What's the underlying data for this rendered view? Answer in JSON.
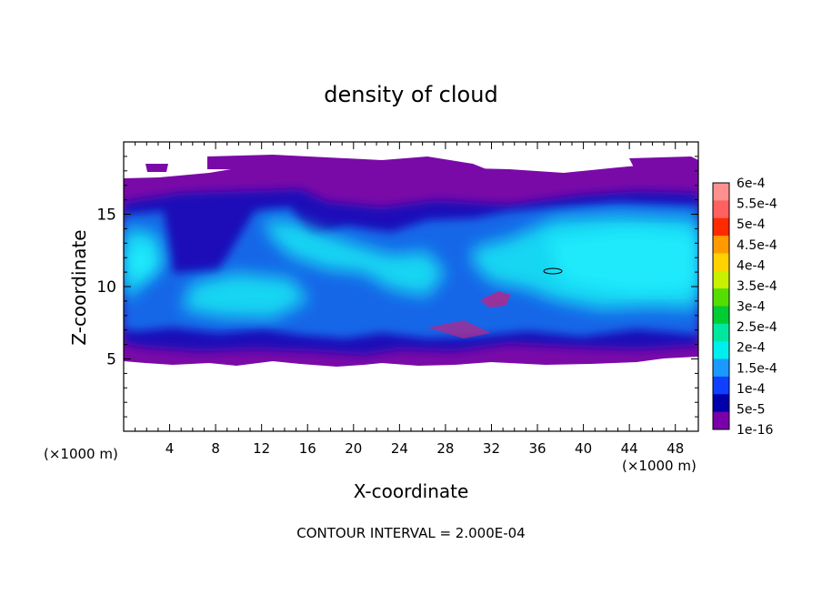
{
  "chart_data": {
    "type": "heatmap",
    "title": "density of cloud",
    "xlabel": "X-coordinate",
    "ylabel": "Z-coordinate",
    "x_unit_note": "(×1000 m)",
    "y_unit_note": "(×1000 m)",
    "xlim": [
      0,
      50
    ],
    "ylim": [
      0,
      20
    ],
    "x_ticks": [
      4,
      8,
      12,
      16,
      20,
      24,
      28,
      32,
      36,
      40,
      44,
      48
    ],
    "y_ticks": [
      5,
      10,
      15
    ],
    "contour_interval_text": "CONTOUR INTERVAL = 2.000E-04",
    "colorbar": {
      "labels": [
        "6e-4",
        "5.5e-4",
        "5e-4",
        "4.5e-4",
        "4e-4",
        "3.5e-4",
        "3e-4",
        "2.5e-4",
        "2e-4",
        "1.5e-4",
        "1e-4",
        "5e-5",
        "1e-16"
      ],
      "colors": [
        "#ff9090",
        "#ff6060",
        "#ff2a00",
        "#ff9a00",
        "#ffd200",
        "#c8f000",
        "#55dd00",
        "#00cc33",
        "#00e8a0",
        "#00eeee",
        "#1a9aff",
        "#1040ff",
        "#0000aa",
        "#7a00aa"
      ]
    },
    "field_description_bands": [
      {
        "level": "1e-16",
        "z_range": [
          4.8,
          17.6
        ]
      },
      {
        "level": "1.5e-4",
        "z_range": [
          6.5,
          15.5
        ]
      }
    ]
  }
}
